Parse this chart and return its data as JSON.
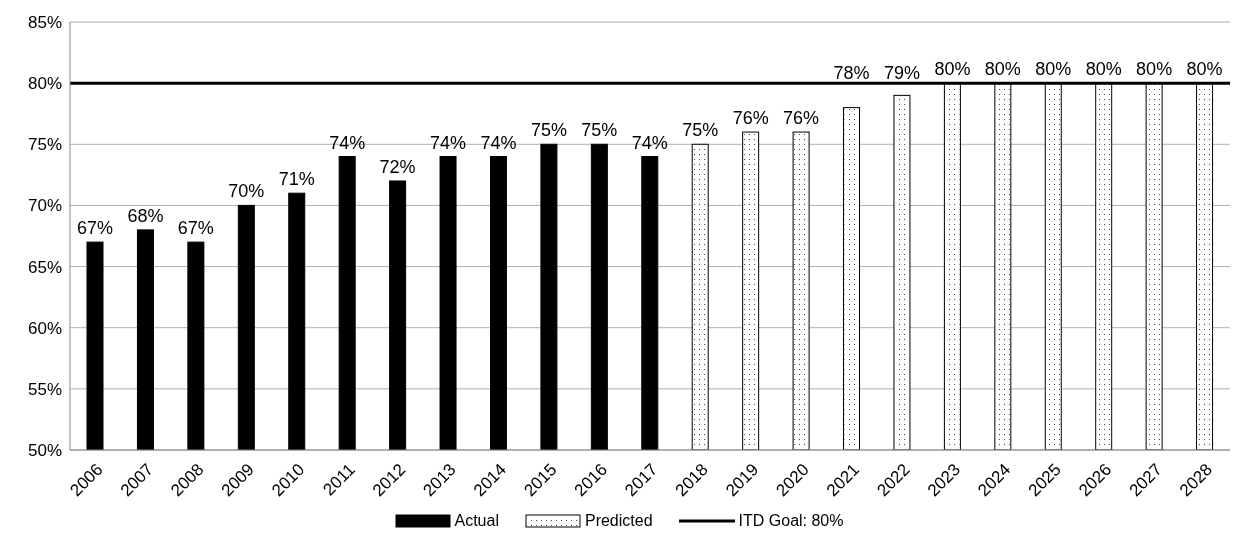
{
  "chart_data": {
    "type": "bar",
    "categories": [
      "2006",
      "2007",
      "2008",
      "2009",
      "2010",
      "2011",
      "2012",
      "2013",
      "2014",
      "2015",
      "2016",
      "2017",
      "2018",
      "2019",
      "2020",
      "2021",
      "2022",
      "2023",
      "2024",
      "2025",
      "2026",
      "2027",
      "2028"
    ],
    "series": [
      {
        "name": "Actual",
        "color": "#000000",
        "values": [
          67,
          68,
          67,
          70,
          71,
          74,
          72,
          74,
          74,
          75,
          75,
          74,
          null,
          null,
          null,
          null,
          null,
          null,
          null,
          null,
          null,
          null,
          null
        ],
        "value_labels": [
          "67%",
          "68%",
          "67%",
          "70%",
          "71%",
          "74%",
          "72%",
          "74%",
          "74%",
          "75%",
          "75%",
          "74%",
          null,
          null,
          null,
          null,
          null,
          null,
          null,
          null,
          null,
          null,
          null
        ]
      },
      {
        "name": "Predicted",
        "color": "#ffffff",
        "values": [
          null,
          null,
          null,
          null,
          null,
          null,
          null,
          null,
          null,
          null,
          null,
          null,
          75,
          76,
          76,
          78,
          79,
          80,
          80,
          80,
          80,
          80,
          80
        ],
        "value_labels": [
          null,
          null,
          null,
          null,
          null,
          null,
          null,
          null,
          null,
          null,
          null,
          null,
          "75%",
          "76%",
          "76%",
          "78%",
          "79%",
          "80%",
          "80%",
          "80%",
          "80%",
          "80%",
          "80%"
        ]
      }
    ],
    "ref_lines": [
      {
        "axis": "y",
        "value": 80,
        "label": "ITD Goal: 80%",
        "color": "#000000"
      }
    ],
    "ylim": [
      50,
      85
    ],
    "yticks": [
      {
        "value": 50,
        "label": "50%"
      },
      {
        "value": 55,
        "label": "55%"
      },
      {
        "value": 60,
        "label": "60%"
      },
      {
        "value": 65,
        "label": "65%"
      },
      {
        "value": 70,
        "label": "70%"
      },
      {
        "value": 75,
        "label": "75%"
      },
      {
        "value": 80,
        "label": "80%"
      },
      {
        "value": 85,
        "label": "85%"
      }
    ],
    "grid": "y",
    "legend": "bottom"
  }
}
